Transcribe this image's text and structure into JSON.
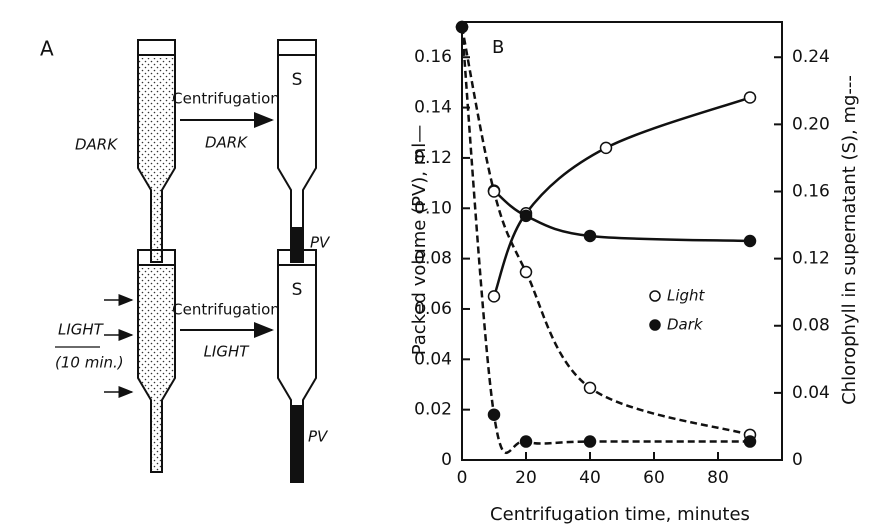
{
  "diagram": {
    "panel": "A",
    "dark_condition": "DARK",
    "dark_arrow_top": "Centrifugation",
    "dark_arrow_bottom": "DARK",
    "dark_supernatant": "S",
    "dark_pellet": "PV",
    "light_condition": "LIGHT",
    "light_duration": "(10 min.)",
    "light_arrow_top": "Centrifugation",
    "light_arrow_bottom": "LIGHT",
    "light_supernatant": "S",
    "light_pellet": "PV"
  },
  "chart_data": {
    "type": "line",
    "panel": "B",
    "x_label": "Centrifugation time, minutes",
    "y_label": "Packed volume (PV), ml—",
    "y2_label": "Chlorophyll in supernatant (S), mg---",
    "xlim": [
      0,
      100
    ],
    "xticks": [
      0,
      20,
      40,
      60,
      80
    ],
    "ylim": [
      0,
      0.174
    ],
    "yticks": [
      0,
      0.02,
      0.04,
      0.06,
      0.08,
      {
        "value": 0.1,
        "label": "0.10"
      },
      0.12,
      0.14,
      0.16
    ],
    "y2lim": [
      0,
      0.261
    ],
    "y2ticks": [
      0,
      0.04,
      0.08,
      0.12,
      0.16,
      {
        "value": 0.2,
        "label": "0.20"
      },
      0.24
    ],
    "series": [
      {
        "name": "Light",
        "marker": "open",
        "dashed": false,
        "x": [
          10,
          20,
          45,
          90
        ],
        "values": [
          0.065,
          0.098,
          0.124,
          0.144
        ]
      },
      {
        "name": "Dark",
        "marker": "filled",
        "dashed": false,
        "x": [
          10,
          20,
          40,
          90
        ],
        "values": [
          0.107,
          0.097,
          0.089,
          0.087
        ]
      },
      {
        "axis": "y2",
        "marker": "open",
        "dashed": true,
        "x": [
          0,
          10,
          20,
          40,
          90
        ],
        "values": [
          0.258,
          0.16,
          0.112,
          0.043,
          0.015
        ]
      },
      {
        "axis": "y2",
        "marker": "filled",
        "dashed": true,
        "x": [
          0,
          10,
          20,
          40,
          90
        ],
        "values": [
          0.258,
          0.027,
          0.011,
          0.011,
          0.011
        ]
      }
    ]
  }
}
